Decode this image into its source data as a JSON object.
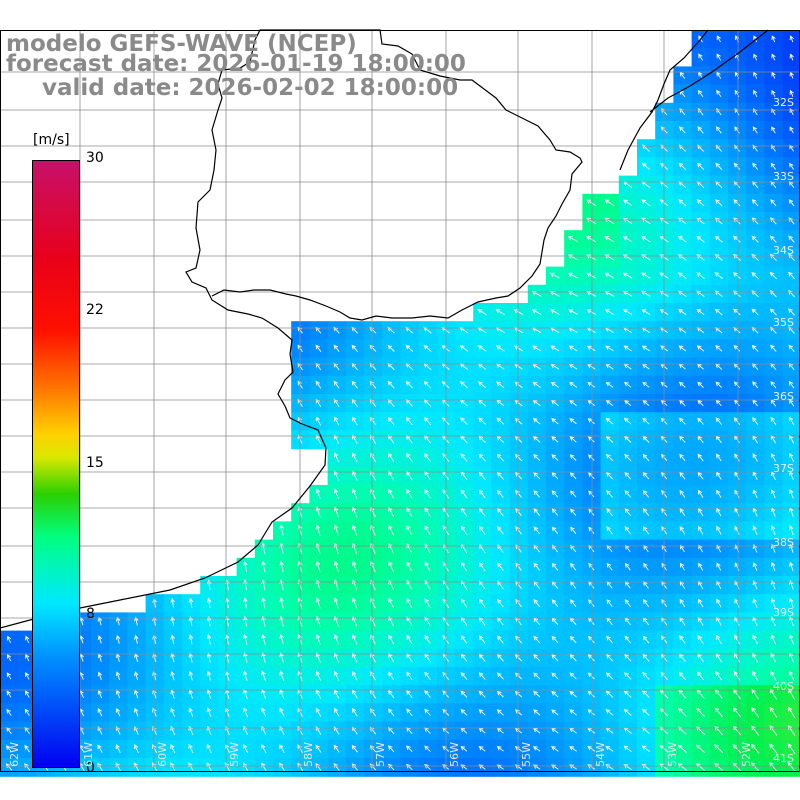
{
  "title": {
    "line1": "modelo GEFS-WAVE (NCEP)",
    "line2": "forecast date: 2026-01-19 18:00:00",
    "line3": "valid date: 2026-02-02 18:00:00"
  },
  "colorbar": {
    "unit": "[m/s]",
    "ticks": [
      {
        "label": "30",
        "value": 30
      },
      {
        "label": "22",
        "value": 22
      },
      {
        "label": "15",
        "value": 15
      },
      {
        "label": "8",
        "value": 8
      },
      {
        "label": "0",
        "value": 0
      }
    ],
    "range": [
      0,
      30
    ]
  },
  "map": {
    "field": "wind speed",
    "dominant_value_range_ms": [
      4,
      12
    ],
    "land_color": "#ffffff",
    "coastline_color": "#000000",
    "grid_color": "#8c8c8c",
    "lat_labels": [
      "32S",
      "33S",
      "34S",
      "35S",
      "36S",
      "37S",
      "38S",
      "39S",
      "40S",
      "41S"
    ],
    "lon_labels": [
      "62W",
      "61W",
      "60W",
      "59W",
      "58W",
      "57W",
      "56W",
      "55W",
      "54W",
      "53W",
      "52W"
    ]
  },
  "colors": {
    "title_text": "#8a8a8a",
    "arrow": "#ffffff"
  }
}
